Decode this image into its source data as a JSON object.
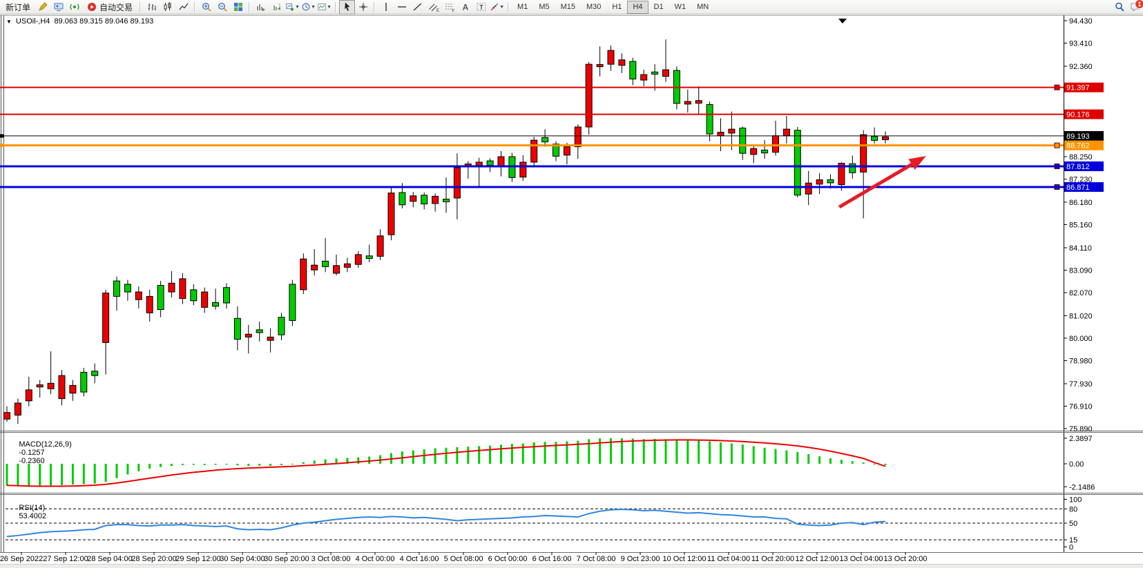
{
  "toolbar": {
    "items": [
      {
        "t": "button",
        "name": "new-order-button",
        "label": "新订单"
      },
      {
        "t": "icon",
        "name": "metaeditor-icon"
      },
      {
        "t": "icon",
        "name": "terminal-icon"
      },
      {
        "t": "icon",
        "name": "signals-icon"
      },
      {
        "t": "iconbutton",
        "name": "autotrading-button",
        "icon": "autotrading-icon",
        "label": "自动交易"
      },
      {
        "t": "sep"
      },
      {
        "t": "icon",
        "name": "bar-chart-icon"
      },
      {
        "t": "icon",
        "name": "candlestick-chart-icon"
      },
      {
        "t": "icon",
        "name": "line-chart-icon"
      },
      {
        "t": "sep"
      },
      {
        "t": "icon",
        "name": "zoom-in-icon"
      },
      {
        "t": "icon",
        "name": "zoom-out-icon"
      },
      {
        "t": "icon",
        "name": "tile-windows-icon"
      },
      {
        "t": "sep"
      },
      {
        "t": "icon",
        "name": "auto-scroll-icon"
      },
      {
        "t": "icon",
        "name": "chart-shift-icon"
      },
      {
        "t": "icon",
        "name": "new-chart-icon",
        "caret": true
      },
      {
        "t": "icon",
        "name": "periods-icon",
        "caret": true
      },
      {
        "t": "icon",
        "name": "templates-icon",
        "caret": true
      },
      {
        "t": "sep"
      },
      {
        "t": "icon",
        "name": "cursor-icon",
        "active": true
      },
      {
        "t": "icon",
        "name": "crosshair-icon"
      },
      {
        "t": "sep"
      },
      {
        "t": "icon",
        "name": "vertical-line-icon"
      },
      {
        "t": "icon",
        "name": "horizontal-line-icon"
      },
      {
        "t": "icon",
        "name": "trendline-icon"
      },
      {
        "t": "icon",
        "name": "equidistant-channel-icon"
      },
      {
        "t": "icon",
        "name": "fibonacci-icon"
      },
      {
        "t": "icon",
        "name": "text-icon"
      },
      {
        "t": "icon",
        "name": "text-label-icon"
      },
      {
        "t": "icon",
        "name": "arrows-icon",
        "caret": true
      },
      {
        "t": "sep"
      },
      {
        "t": "tf",
        "name": "timeframe-m1-button",
        "label": "M1"
      },
      {
        "t": "tf",
        "name": "timeframe-m5-button",
        "label": "M5"
      },
      {
        "t": "tf",
        "name": "timeframe-m15-button",
        "label": "M15"
      },
      {
        "t": "tf",
        "name": "timeframe-m30-button",
        "label": "M30"
      },
      {
        "t": "tf",
        "name": "timeframe-h1-button",
        "label": "H1"
      },
      {
        "t": "tf",
        "name": "timeframe-h4-button",
        "label": "H4",
        "active": true
      },
      {
        "t": "tf",
        "name": "timeframe-d1-button",
        "label": "D1"
      },
      {
        "t": "tf",
        "name": "timeframe-w1-button",
        "label": "W1"
      },
      {
        "t": "tf",
        "name": "timeframe-mn-button",
        "label": "MN"
      },
      {
        "t": "spacer"
      },
      {
        "t": "icon",
        "name": "search-icon"
      },
      {
        "t": "icon",
        "name": "chat-icon",
        "badge": "1"
      }
    ]
  },
  "chart": {
    "collapse_icon": "▼",
    "symbol_period": "USOil-,H4",
    "ohlc": "89.063 89.315 89.046 89.193"
  },
  "chart_data": {
    "type": "candlestick",
    "symbol": "USOil-",
    "period": "H4",
    "price_axis_top": 94.43,
    "price_axis_bottom": 75.89,
    "price_ticks": [
      "94.430",
      "93.410",
      "92.360",
      "88.250",
      "87.230",
      "86.180",
      "85.160",
      "84.110",
      "83.090",
      "82.070",
      "81.020",
      "80.000",
      "78.980",
      "77.930",
      "76.910",
      "75.890"
    ],
    "horizontal_levels": [
      {
        "price": 91.397,
        "label": "91.397",
        "color": "#DF0000",
        "width": 2,
        "handle": true,
        "left_mark": false
      },
      {
        "price": 90.176,
        "label": "90.176",
        "color": "#DF0000",
        "width": 2,
        "handle": false,
        "left_mark": false
      },
      {
        "price": 89.193,
        "label": "89.193",
        "color": "#000000",
        "width": 1,
        "handle": false,
        "left_mark": true
      },
      {
        "price": 88.762,
        "label": "88.762",
        "color": "#FF9400",
        "width": 3,
        "handle": true,
        "left_mark": true
      },
      {
        "price": 87.812,
        "label": "87.812",
        "color": "#0000DC",
        "width": 3,
        "handle": true,
        "left_mark": false
      },
      {
        "price": 86.871,
        "label": "86.871",
        "color": "#0000DC",
        "width": 3,
        "handle": true,
        "left_mark": false
      }
    ],
    "time_labels": [
      "26 Sep 2022",
      "27 Sep 12:00",
      "28 Sep 04:00",
      "28 Sep 20:00",
      "29 Sep 12:00",
      "30 Sep 04:00",
      "30 Sep 20:00",
      "3 Oct 08:00",
      "4 Oct 00:00",
      "4 Oct 16:00",
      "5 Oct 08:00",
      "6 Oct 00:00",
      "6 Oct 16:00",
      "7 Oct 08:00",
      "9 Oct 23:00",
      "10 Oct 12:00",
      "11 Oct 04:00",
      "11 Oct 20:00",
      "12 Oct 12:00",
      "13 Oct 04:00",
      "13 Oct 20:00"
    ],
    "candle_colors": {
      "up": "#00CC00",
      "down": "#EE0000",
      "outline": "#000000"
    },
    "candles": [
      [
        76.9,
        76.2,
        76.62,
        76.32,
        "r"
      ],
      [
        77.25,
        76.1,
        77.05,
        76.5,
        "r"
      ],
      [
        78.25,
        76.9,
        77.65,
        77.15,
        "r"
      ],
      [
        78.1,
        77.3,
        77.88,
        77.78,
        "r"
      ],
      [
        79.4,
        77.45,
        77.95,
        77.7,
        "r"
      ],
      [
        78.55,
        76.95,
        78.3,
        77.25,
        "r"
      ],
      [
        78.1,
        77.15,
        77.85,
        77.5,
        "r"
      ],
      [
        78.65,
        77.35,
        78.45,
        77.55,
        "g"
      ],
      [
        78.85,
        77.95,
        78.5,
        78.3,
        "g"
      ],
      [
        82.2,
        78.35,
        82.05,
        79.8,
        "r"
      ],
      [
        82.8,
        81.25,
        82.6,
        81.9,
        "g"
      ],
      [
        82.65,
        81.7,
        82.45,
        82.1,
        "g"
      ],
      [
        82.35,
        81.35,
        82.1,
        81.75,
        "r"
      ],
      [
        82.2,
        80.75,
        81.9,
        81.15,
        "r"
      ],
      [
        82.6,
        80.95,
        82.4,
        81.3,
        "g"
      ],
      [
        83.05,
        81.85,
        82.5,
        82.1,
        "r"
      ],
      [
        82.95,
        81.55,
        82.7,
        81.8,
        "r"
      ],
      [
        82.45,
        81.5,
        82.2,
        81.7,
        "g"
      ],
      [
        82.3,
        81.15,
        82.1,
        81.4,
        "r"
      ],
      [
        82.25,
        81.3,
        81.62,
        81.45,
        "g"
      ],
      [
        82.5,
        81.35,
        82.3,
        81.6,
        "g"
      ],
      [
        81.45,
        79.45,
        80.9,
        79.95,
        "g"
      ],
      [
        80.6,
        79.3,
        80.18,
        80.05,
        "r"
      ],
      [
        80.75,
        79.85,
        80.38,
        80.25,
        "g"
      ],
      [
        80.45,
        79.35,
        80.05,
        79.9,
        "r"
      ],
      [
        81.15,
        79.9,
        80.95,
        80.15,
        "g"
      ],
      [
        82.65,
        80.55,
        82.45,
        80.8,
        "g"
      ],
      [
        83.85,
        82.0,
        83.6,
        82.2,
        "r"
      ],
      [
        84.05,
        82.85,
        83.32,
        83.1,
        "r"
      ],
      [
        84.55,
        83.0,
        83.5,
        83.25,
        "g"
      ],
      [
        83.8,
        82.85,
        83.3,
        82.95,
        "r"
      ],
      [
        83.65,
        83.0,
        83.38,
        83.22,
        "r"
      ],
      [
        83.95,
        83.2,
        83.8,
        83.35,
        "r"
      ],
      [
        84.25,
        83.45,
        83.74,
        83.62,
        "g"
      ],
      [
        84.95,
        83.55,
        84.65,
        83.72,
        "r"
      ],
      [
        86.85,
        84.45,
        86.6,
        84.7,
        "r"
      ],
      [
        87.05,
        85.9,
        86.62,
        86.06,
        "g"
      ],
      [
        86.65,
        85.95,
        86.47,
        86.22,
        "r"
      ],
      [
        86.62,
        85.85,
        86.5,
        86.1,
        "g"
      ],
      [
        86.58,
        85.75,
        86.45,
        86.12,
        "r"
      ],
      [
        87.3,
        85.7,
        86.32,
        86.2,
        "g"
      ],
      [
        88.4,
        85.4,
        87.75,
        86.37,
        "r"
      ],
      [
        88.05,
        87.25,
        87.92,
        87.78,
        "r"
      ],
      [
        88.2,
        86.85,
        88.0,
        87.85,
        "r"
      ],
      [
        88.18,
        87.55,
        88.06,
        87.86,
        "g"
      ],
      [
        88.5,
        87.35,
        88.25,
        87.8,
        "r"
      ],
      [
        88.42,
        87.1,
        88.25,
        87.3,
        "g"
      ],
      [
        88.32,
        87.15,
        88.0,
        87.32,
        "r"
      ],
      [
        89.15,
        87.85,
        89.0,
        88.0,
        "r"
      ],
      [
        89.5,
        88.7,
        89.12,
        88.92,
        "g"
      ],
      [
        88.95,
        88.05,
        88.82,
        88.27,
        "g"
      ],
      [
        88.88,
        87.9,
        88.7,
        88.32,
        "r"
      ],
      [
        89.72,
        88.15,
        89.6,
        88.7,
        "r"
      ],
      [
        92.55,
        89.25,
        92.45,
        89.6,
        "r"
      ],
      [
        93.26,
        91.9,
        92.44,
        92.34,
        "r"
      ],
      [
        93.3,
        92.15,
        93.08,
        92.45,
        "r"
      ],
      [
        92.95,
        92.05,
        92.65,
        92.4,
        "r"
      ],
      [
        92.75,
        91.5,
        92.58,
        91.78,
        "g"
      ],
      [
        92.2,
        91.45,
        91.98,
        91.73,
        "r"
      ],
      [
        92.45,
        91.25,
        92.1,
        92.0,
        "g"
      ],
      [
        93.58,
        91.65,
        92.2,
        91.9,
        "r"
      ],
      [
        92.35,
        90.4,
        92.17,
        90.67,
        "g"
      ],
      [
        91.3,
        90.25,
        90.76,
        90.64,
        "r"
      ],
      [
        91.45,
        90.15,
        90.8,
        90.68,
        "r"
      ],
      [
        90.75,
        88.95,
        90.62,
        89.28,
        "g"
      ],
      [
        90.0,
        88.5,
        89.36,
        89.2,
        "r"
      ],
      [
        90.3,
        88.55,
        89.5,
        89.32,
        "r"
      ],
      [
        89.62,
        88.1,
        89.55,
        88.4,
        "g"
      ],
      [
        88.75,
        87.95,
        88.62,
        88.35,
        "r"
      ],
      [
        89.0,
        88.15,
        88.55,
        88.42,
        "g"
      ],
      [
        89.88,
        88.3,
        89.2,
        88.45,
        "r"
      ],
      [
        90.1,
        88.85,
        89.5,
        89.2,
        "r"
      ],
      [
        89.6,
        86.4,
        89.45,
        86.5,
        "g"
      ],
      [
        87.6,
        86.05,
        87.05,
        86.55,
        "r"
      ],
      [
        87.5,
        86.55,
        87.2,
        87.0,
        "r"
      ],
      [
        87.45,
        86.8,
        87.2,
        87.06,
        "g"
      ],
      [
        88.0,
        86.7,
        87.95,
        86.98,
        "r"
      ],
      [
        88.3,
        87.25,
        87.93,
        87.52,
        "g"
      ],
      [
        89.45,
        85.45,
        89.25,
        87.55,
        "r"
      ],
      [
        89.58,
        88.85,
        89.17,
        88.99,
        "g"
      ],
      [
        89.4,
        88.85,
        89.15,
        89.02,
        "r"
      ]
    ],
    "macd": {
      "label": "MACD(12,26,9)",
      "main_value": "-0.1257",
      "signal_value": "-0.2360",
      "axis_ticks": [
        {
          "label": "2.3897",
          "v": 2.3897
        },
        {
          "label": "0.00",
          "v": 0
        },
        {
          "label": "-2.1486",
          "v": -2.1486
        }
      ],
      "colors": {
        "histogram": "#00CC00",
        "signal": "#EE0000"
      },
      "histogram": [
        -2.05,
        -2.1,
        -2.15,
        -2.1,
        -2.05,
        -2.0,
        -1.95,
        -1.9,
        -1.85,
        -1.7,
        -1.35,
        -1.0,
        -0.7,
        -0.45,
        -0.3,
        -0.2,
        -0.12,
        -0.1,
        -0.12,
        -0.1,
        -0.08,
        -0.15,
        -0.2,
        -0.18,
        -0.2,
        -0.12,
        0.0,
        0.15,
        0.3,
        0.42,
        0.5,
        0.55,
        0.6,
        0.68,
        0.8,
        1.0,
        1.15,
        1.25,
        1.35,
        1.45,
        1.5,
        1.55,
        1.6,
        1.65,
        1.7,
        1.78,
        1.85,
        1.9,
        2.0,
        2.05,
        2.05,
        2.1,
        2.15,
        2.3,
        2.37,
        2.3897,
        2.38,
        2.36,
        2.3,
        2.32,
        2.3,
        2.25,
        2.2,
        2.18,
        2.1,
        2.0,
        1.9,
        1.8,
        1.65,
        1.5,
        1.38,
        1.25,
        1.1,
        0.9,
        0.7,
        0.52,
        0.38,
        0.25,
        0.12,
        0.0,
        -0.1257
      ],
      "signal": [
        -2.02,
        -2.05,
        -2.08,
        -2.1,
        -2.1,
        -2.1,
        -2.08,
        -2.05,
        -2.0,
        -1.92,
        -1.8,
        -1.65,
        -1.5,
        -1.35,
        -1.2,
        -1.05,
        -0.92,
        -0.8,
        -0.7,
        -0.6,
        -0.52,
        -0.45,
        -0.4,
        -0.36,
        -0.32,
        -0.28,
        -0.24,
        -0.18,
        -0.12,
        -0.05,
        0.02,
        0.1,
        0.18,
        0.26,
        0.35,
        0.45,
        0.56,
        0.67,
        0.78,
        0.88,
        0.98,
        1.07,
        1.16,
        1.24,
        1.32,
        1.4,
        1.47,
        1.54,
        1.6,
        1.66,
        1.72,
        1.77,
        1.82,
        1.88,
        1.95,
        2.02,
        2.08,
        2.13,
        2.17,
        2.2,
        2.22,
        2.23,
        2.23,
        2.22,
        2.2,
        2.17,
        2.13,
        2.08,
        2.02,
        1.95,
        1.87,
        1.78,
        1.67,
        1.53,
        1.37,
        1.18,
        0.97,
        0.74,
        0.5,
        0.12,
        -0.236
      ]
    },
    "rsi": {
      "label": "RSI(14)",
      "value": "53.4002",
      "axis_ticks": [
        {
          "label": "100",
          "v": 100
        },
        {
          "label": "80",
          "v": 80
        },
        {
          "label": "50",
          "v": 50
        },
        {
          "label": "15",
          "v": 15
        },
        {
          "label": "0",
          "v": 0
        }
      ],
      "dashed_levels": [
        80,
        50,
        15
      ],
      "color": "#2E86E0",
      "values": [
        22,
        24,
        27,
        30,
        32,
        33,
        34,
        36,
        37,
        45,
        47,
        47,
        45,
        44,
        46,
        46,
        47,
        45,
        44,
        43,
        44,
        38,
        36,
        37,
        36,
        40,
        46,
        50,
        52,
        55,
        58,
        60,
        62,
        63,
        62,
        64,
        63,
        61,
        62,
        60,
        58,
        55,
        57,
        58,
        59,
        60,
        61,
        63,
        64,
        66,
        65,
        64,
        63,
        70,
        75,
        78,
        79,
        78,
        76,
        77,
        75,
        73,
        71,
        72,
        70,
        68,
        67,
        65,
        63,
        63,
        60,
        59,
        48,
        46,
        45,
        46,
        50,
        51,
        47,
        52,
        53.4
      ]
    },
    "annotation_arrow": {
      "color": "#E51C23",
      "from_bar": 75.8,
      "from_price": 85.96,
      "to_bar": 83.7,
      "to_price": 88.28
    }
  }
}
